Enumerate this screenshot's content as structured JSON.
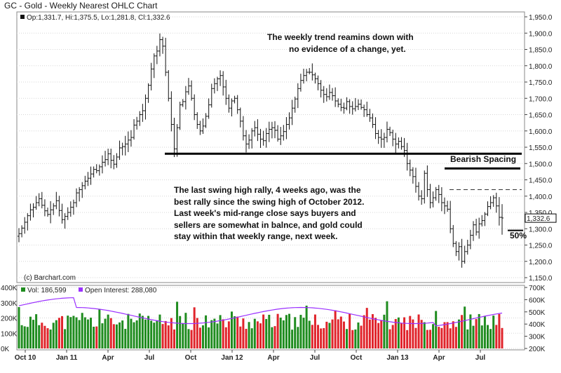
{
  "chart_data": [
    {
      "type": "ohlc",
      "title": "GC - Gold - Weekly Nearest OHLC Chart",
      "last_bar": {
        "open": 1331.7,
        "high": 1375.5,
        "low": 1281.8,
        "close": 1332.6
      },
      "legend": {
        "op": "Op:1,331.7,",
        "hi": "Hi:1,375.5,",
        "lo": "Lo:1,281.8,",
        "cl": "Cl:1,332.6"
      },
      "last_price_label": "1,332.6",
      "y_ticks": [
        "1,950.0",
        "1,900.0",
        "1,850.0",
        "1,800.0",
        "1,750.0",
        "1,700.0",
        "1,650.0",
        "1,600.0",
        "1,550.0",
        "1,500.0",
        "1,450.0",
        "1,400.0",
        "1,350.0",
        "1,300.0",
        "1,250.0",
        "1,200.0",
        "1,150.0"
      ],
      "ylim": [
        1150,
        1950
      ],
      "close_series": [
        1285,
        1302,
        1320,
        1340,
        1358,
        1366,
        1380,
        1392,
        1372,
        1355,
        1344,
        1358,
        1370,
        1386,
        1356,
        1328,
        1338,
        1350,
        1366,
        1380,
        1410,
        1420,
        1432,
        1446,
        1455,
        1468,
        1482,
        1478,
        1490,
        1504,
        1512,
        1530,
        1510,
        1498,
        1520,
        1548,
        1552,
        1560,
        1572,
        1580,
        1618,
        1630,
        1650,
        1662,
        1700,
        1740,
        1790,
        1830,
        1845,
        1880,
        1860,
        1780,
        1700,
        1620,
        1545,
        1610,
        1680,
        1690,
        1720,
        1738,
        1700,
        1650,
        1620,
        1600,
        1615,
        1645,
        1680,
        1730,
        1745,
        1760,
        1770,
        1735,
        1700,
        1670,
        1692,
        1700,
        1665,
        1630,
        1585,
        1560,
        1572,
        1600,
        1610,
        1590,
        1575,
        1570,
        1592,
        1605,
        1610,
        1602,
        1575,
        1585,
        1598,
        1620,
        1640,
        1670,
        1698,
        1730,
        1755,
        1770,
        1780,
        1780,
        1772,
        1760,
        1745,
        1725,
        1712,
        1705,
        1718,
        1708,
        1692,
        1682,
        1672,
        1670,
        1690,
        1675,
        1668,
        1675,
        1682,
        1672,
        1665,
        1650,
        1640,
        1620,
        1592,
        1580,
        1575,
        1580,
        1605,
        1595,
        1575,
        1560,
        1568,
        1552,
        1540,
        1500,
        1480,
        1460,
        1430,
        1400,
        1392,
        1470,
        1420,
        1380,
        1395,
        1420,
        1405,
        1380,
        1370,
        1360,
        1300,
        1255,
        1230,
        1245,
        1200,
        1230,
        1250,
        1280,
        1312,
        1290,
        1315,
        1325,
        1345,
        1368,
        1380,
        1395,
        1370,
        1335,
        1333
      ],
      "volume_axis": {
        "ticks": [
          "400K",
          "300K",
          "200K",
          "100K",
          "0K"
        ],
        "range": [
          0,
          400
        ]
      },
      "open_interest_axis": {
        "ticks": [
          "700K",
          "600K",
          "500K",
          "400K",
          "300K",
          "200K"
        ],
        "range": [
          200,
          700
        ]
      },
      "volume_legend": {
        "vol": "Vol: 186,599",
        "oi": "Open Interest: 288,080"
      },
      "x_ticks": [
        "Oct 10",
        "Jan 11",
        "Apr",
        "Jul",
        "Oct",
        "Jan 12",
        "Apr",
        "Jul",
        "Oct",
        "Jan 13",
        "Apr",
        "Jul"
      ],
      "annotations": {
        "trend_line1": "The weekly trend reamins down with",
        "trend_line2": "no evidence of a change, yet.",
        "bearish_spacing": "Bearish Spacing",
        "swing_line1": "The last swing high rally, 4 weeks ago, was the",
        "swing_line2": "best rally since the swing high of October 2012.",
        "swing_line3": "Last week's mid-range close says buyers and",
        "swing_line4": "sellers are somewhat in balnce, and gold could",
        "swing_line5": "stay within that weekly range, next week.",
        "fifty_pct": "50%"
      },
      "support_level": 1530,
      "bearish_upper_level": 1485,
      "swing_high_dashed": 1420,
      "fifty_percent_level": 1295,
      "credit": "(c) Barchart.com",
      "colors": {
        "bars": "#111111",
        "vol_up": "#1f8c1f",
        "vol_down": "#e0242b",
        "open_interest": "#9b30ff",
        "grid": "#cccccc"
      }
    }
  ]
}
